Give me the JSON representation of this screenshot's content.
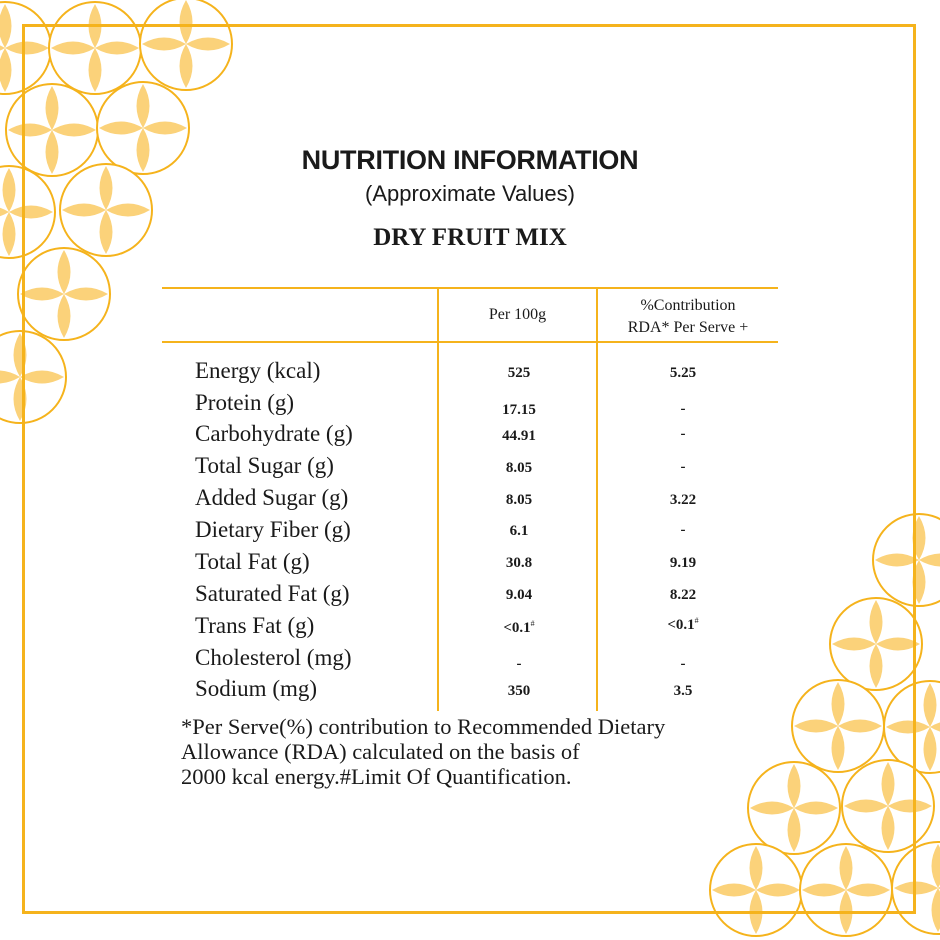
{
  "colors": {
    "accent": "#f5b31c",
    "accent_light": "#fbd27a",
    "text": "#1a1a1a"
  },
  "header": {
    "title": "NUTRITION INFORMATION",
    "subtitle": "(Approximate Values)",
    "product": "DRY FRUIT MIX"
  },
  "table": {
    "columns": [
      "Per 100g",
      "%Contribution",
      "RDA* Per Serve +"
    ],
    "rows": [
      {
        "nutrient": "Energy (kcal)",
        "per100": "525",
        "rda": "5.25"
      },
      {
        "nutrient": "Protein (g)",
        "per100": "17.15",
        "rda": "-"
      },
      {
        "nutrient": "Carbohydrate (g)",
        "per100": "44.91",
        "rda": "-"
      },
      {
        "nutrient": "Total Sugar (g)",
        "per100": "8.05",
        "rda": "-"
      },
      {
        "nutrient": "Added Sugar (g)",
        "per100": "8.05",
        "rda": "3.22"
      },
      {
        "nutrient": "Dietary Fiber (g)",
        "per100": "6.1",
        "rda": "-"
      },
      {
        "nutrient": "Total Fat (g)",
        "per100": "30.8",
        "rda": "9.19"
      },
      {
        "nutrient": "Saturated Fat (g)",
        "per100": "9.04",
        "rda": "8.22"
      },
      {
        "nutrient": "Trans Fat (g)",
        "per100": "<0.1",
        "rda": "<0.1",
        "mark": "#"
      },
      {
        "nutrient": "Cholesterol (mg)",
        "per100": "-",
        "rda": "-"
      },
      {
        "nutrient": "Sodium (mg)",
        "per100": "350",
        "rda": "3.5"
      }
    ]
  },
  "footnote": {
    "line1": "*Per Serve(%) contribution to Recommended Dietary",
    "line2": "Allowance (RDA) calculated on the basis of",
    "line3": "2000 kcal energy.#Limit Of Quantification."
  }
}
